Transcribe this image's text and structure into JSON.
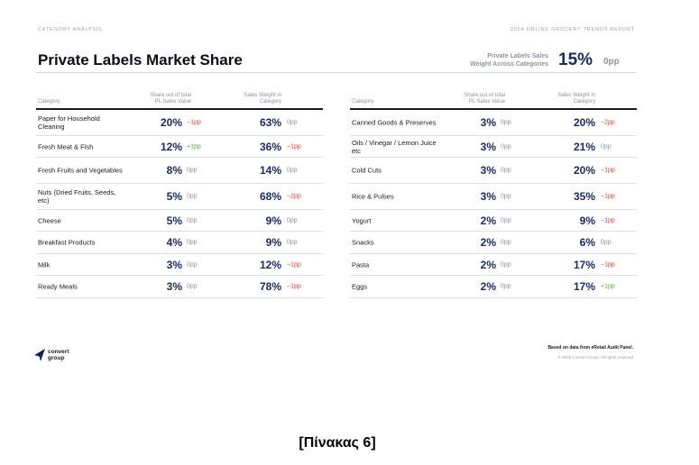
{
  "header": {
    "left_kicker": "CATEGORY ANALYSIS",
    "right_kicker": "2024 ONLINE GROCERY TRENDS REPORT",
    "title": "Private Labels Market Share"
  },
  "kpi": {
    "label_line1": "Private Labels Sales",
    "label_line2": "Weight Across Categories",
    "value": "15%",
    "delta": "0pp"
  },
  "columns": {
    "category": "Category",
    "share_line1": "Share out of total",
    "share_line2": "PL Sales Value",
    "weight_line1": "Sales Weight in",
    "weight_line2": "Category"
  },
  "colors": {
    "value": "#1b2a6b",
    "neutral": "#8c93a0",
    "negative": "#e03a3a",
    "positive": "#5aa832"
  },
  "left_table": [
    {
      "category": "Paper for Household Cleaning",
      "share": "20%",
      "share_delta": "−1pp",
      "share_trend": "negative",
      "weight": "63%",
      "weight_delta": "0pp",
      "weight_trend": "neutral"
    },
    {
      "category": "Fresh Meat & Fish",
      "share": "12%",
      "share_delta": "+1pp",
      "share_trend": "positive",
      "weight": "36%",
      "weight_delta": "−1pp",
      "weight_trend": "negative"
    },
    {
      "category": "Fresh Fruits and Vegetables",
      "share": "8%",
      "share_delta": "0pp",
      "share_trend": "neutral",
      "weight": "14%",
      "weight_delta": "0pp",
      "weight_trend": "neutral"
    },
    {
      "category": "Nuts (Dried Fruits, Seeds, etc)",
      "share": "5%",
      "share_delta": "0pp",
      "share_trend": "neutral",
      "weight": "68%",
      "weight_delta": "−2pp",
      "weight_trend": "negative"
    },
    {
      "category": "Cheese",
      "share": "5%",
      "share_delta": "0pp",
      "share_trend": "neutral",
      "weight": "9%",
      "weight_delta": "0pp",
      "weight_trend": "neutral"
    },
    {
      "category": "Breakfast Products",
      "share": "4%",
      "share_delta": "0pp",
      "share_trend": "neutral",
      "weight": "9%",
      "weight_delta": "0pp",
      "weight_trend": "neutral"
    },
    {
      "category": "Milk",
      "share": "3%",
      "share_delta": "0pp",
      "share_trend": "neutral",
      "weight": "12%",
      "weight_delta": "−1pp",
      "weight_trend": "negative"
    },
    {
      "category": "Ready Meals",
      "share": "3%",
      "share_delta": "0pp",
      "share_trend": "neutral",
      "weight": "78%",
      "weight_delta": "−1pp",
      "weight_trend": "negative"
    }
  ],
  "right_table": [
    {
      "category": "Canned Goods & Preserves",
      "share": "3%",
      "share_delta": "0pp",
      "share_trend": "neutral",
      "weight": "20%",
      "weight_delta": "−2pp",
      "weight_trend": "negative"
    },
    {
      "category": "Oils / Vinegar / Lemon Juice etc",
      "share": "3%",
      "share_delta": "0pp",
      "share_trend": "neutral",
      "weight": "21%",
      "weight_delta": "0pp",
      "weight_trend": "neutral"
    },
    {
      "category": "Cold Cuts",
      "share": "3%",
      "share_delta": "0pp",
      "share_trend": "neutral",
      "weight": "20%",
      "weight_delta": "−1pp",
      "weight_trend": "negative"
    },
    {
      "category": "Rice & Pulses",
      "share": "3%",
      "share_delta": "0pp",
      "share_trend": "neutral",
      "weight": "35%",
      "weight_delta": "−1pp",
      "weight_trend": "negative"
    },
    {
      "category": "Yogurt",
      "share": "2%",
      "share_delta": "0pp",
      "share_trend": "neutral",
      "weight": "9%",
      "weight_delta": "−1pp",
      "weight_trend": "negative"
    },
    {
      "category": "Snacks",
      "share": "2%",
      "share_delta": "0pp",
      "share_trend": "neutral",
      "weight": "6%",
      "weight_delta": "0pp",
      "weight_trend": "neutral"
    },
    {
      "category": "Pasta",
      "share": "2%",
      "share_delta": "0pp",
      "share_trend": "neutral",
      "weight": "17%",
      "weight_delta": "−1pp",
      "weight_trend": "negative"
    },
    {
      "category": "Eggs",
      "share": "2%",
      "share_delta": "0pp",
      "share_trend": "neutral",
      "weight": "17%",
      "weight_delta": "+1pp",
      "weight_trend": "positive"
    }
  ],
  "footer": {
    "logo_line1": "convert",
    "logo_line2": "group",
    "source": "Based on data from eRetail Audit Panel.",
    "copyright": "© 2025 Convert Group. All rights reserved"
  },
  "caption": "[Πίνακας 6]"
}
